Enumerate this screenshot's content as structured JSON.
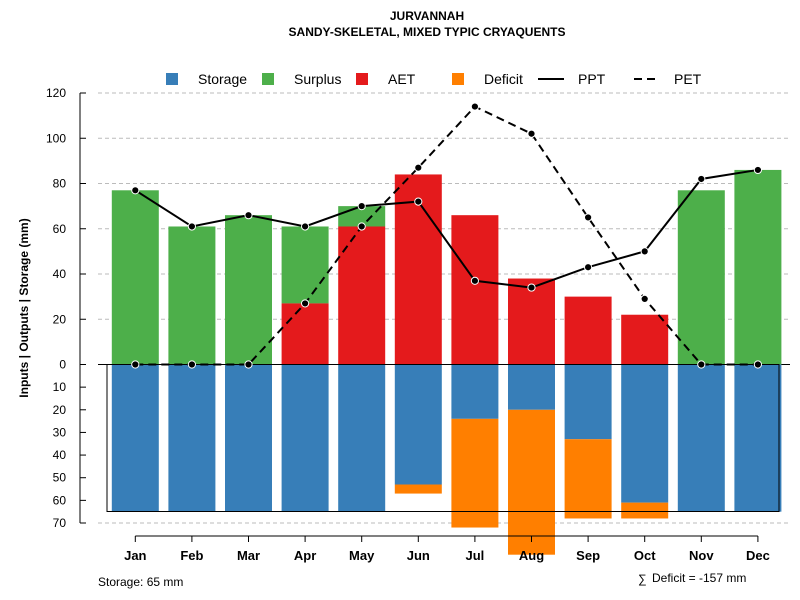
{
  "chart_data": {
    "type": "bar",
    "title": "JURVANNAH",
    "subtitle": "SANDY-SKELETAL, MIXED TYPIC CRYAQUENTS",
    "ylabel": "Inputs | Outputs | Storage     (mm)",
    "categories": [
      "Jan",
      "Feb",
      "Mar",
      "Apr",
      "May",
      "Jun",
      "Jul",
      "Aug",
      "Sep",
      "Oct",
      "Nov",
      "Dec"
    ],
    "ylim_upper": [
      0,
      120
    ],
    "ylim_lower": [
      0,
      70
    ],
    "upper_ticks": [
      0,
      20,
      40,
      60,
      80,
      100,
      120
    ],
    "lower_ticks": [
      10,
      20,
      30,
      40,
      50,
      60,
      70
    ],
    "storage_capacity": 65,
    "series": [
      {
        "name": "Storage",
        "color": "#377EB8",
        "values": [
          65,
          65,
          65,
          65,
          65,
          53,
          24,
          20,
          33,
          61,
          65,
          65
        ]
      },
      {
        "name": "Surplus",
        "color": "#4DAF4A",
        "values": [
          77,
          61,
          66,
          34,
          9,
          0,
          0,
          0,
          0,
          0,
          77,
          86
        ]
      },
      {
        "name": "AET",
        "color": "#E41A1C",
        "values": [
          0,
          0,
          0,
          27,
          61,
          84,
          66,
          38,
          30,
          22,
          0,
          0
        ]
      },
      {
        "name": "Deficit",
        "color": "#FF7F00",
        "values": [
          0,
          0,
          0,
          0,
          0,
          4,
          48,
          64,
          35,
          7,
          0,
          0
        ]
      },
      {
        "name": "PPT",
        "color": "#000000",
        "style": "solid",
        "values": [
          77,
          61,
          66,
          61,
          70,
          72,
          37,
          34,
          43,
          50,
          82,
          86
        ]
      },
      {
        "name": "PET",
        "color": "#000000",
        "style": "dashed",
        "values": [
          0,
          0,
          0,
          27,
          61,
          87,
          114,
          102,
          65,
          29,
          0,
          0
        ]
      }
    ],
    "legend": [
      "Storage",
      "Surplus",
      "AET",
      "Deficit",
      "PPT",
      "PET"
    ],
    "legend_position": "top",
    "grid": true
  },
  "notes": {
    "storage": "Storage: 65 mm",
    "deficit_symbol": "∑",
    "deficit": "Deficit = -157 mm"
  }
}
